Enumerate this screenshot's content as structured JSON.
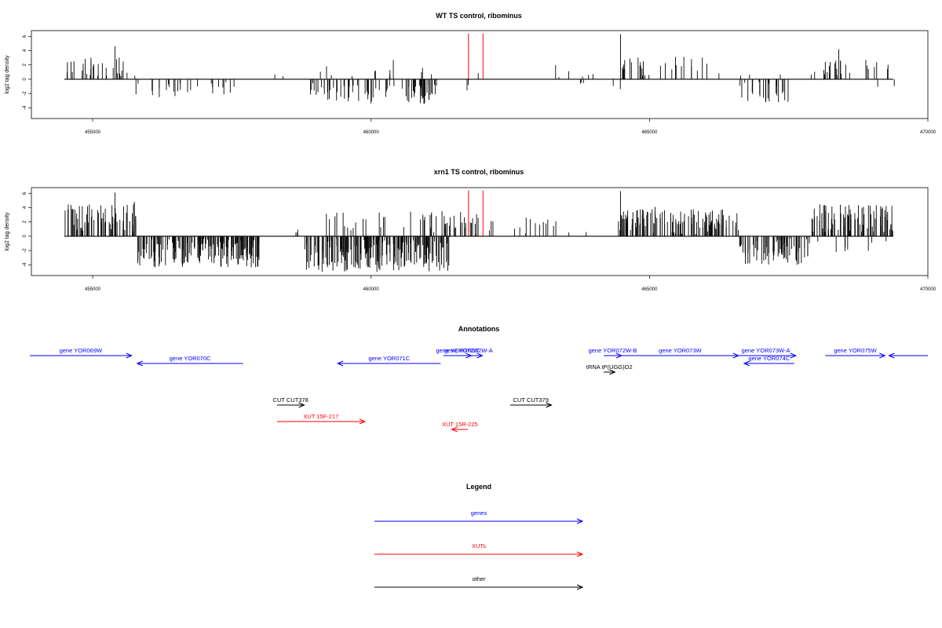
{
  "colors": {
    "genes": "#0000ff",
    "xuts": "#ff0000",
    "other": "#000000",
    "marker": "#ff0000",
    "bars": "#000000"
  },
  "chart_data": [
    {
      "type": "bar",
      "title": "WT TS control, ribominus",
      "ylabel": "log2 tag density",
      "xlim": [
        453900,
        470000
      ],
      "ylim": [
        -5.5,
        6.8
      ],
      "xticks": [
        455000,
        460000,
        465000,
        470000
      ],
      "yticks": [
        -4,
        -2,
        0,
        2,
        4,
        6
      ],
      "marker_lines": [
        461750,
        462010
      ],
      "segments": [
        {
          "from": 454500,
          "to": 455800,
          "sign": 1,
          "count": 30,
          "seed": 11,
          "max": 3.2,
          "extras": [
            [
              455400,
              4.6
            ]
          ]
        },
        {
          "from": 455750,
          "to": 457600,
          "sign": -1,
          "count": 26,
          "seed": 12,
          "max": 2.6
        },
        {
          "from": 458200,
          "to": 458500,
          "sign": 1,
          "count": 2,
          "seed": 13,
          "max": 1.0
        },
        {
          "from": 458800,
          "to": 460000,
          "sign": 1,
          "count": 3,
          "seed": 14,
          "max": 1.6,
          "extras": [
            [
              459200,
              1.8
            ]
          ]
        },
        {
          "from": 458900,
          "to": 461200,
          "sign": -1,
          "count": 75,
          "seed": 15,
          "max": 3.5
        },
        {
          "from": 460000,
          "to": 461400,
          "sign": 1,
          "count": 8,
          "seed": 16,
          "max": 1.6,
          "extras": [
            [
              460400,
              2.7
            ]
          ]
        },
        {
          "from": 461700,
          "to": 461800,
          "sign": -1,
          "count": 2,
          "seed": 17,
          "max": 1.8
        },
        {
          "from": 461900,
          "to": 462000,
          "sign": 1,
          "count": 1,
          "seed": 18,
          "max": 0.9
        },
        {
          "from": 463300,
          "to": 463600,
          "sign": 1,
          "count": 3,
          "seed": 19,
          "max": 2.3
        },
        {
          "from": 463700,
          "to": 464100,
          "sign": 1,
          "count": 3,
          "seed": 20,
          "max": 1.0
        },
        {
          "from": 463700,
          "to": 464000,
          "sign": -1,
          "count": 3,
          "seed": 21,
          "max": 1.0
        },
        {
          "from": 464300,
          "to": 464500,
          "sign": -1,
          "count": 2,
          "seed": 22,
          "max": 2.4
        },
        {
          "from": 464400,
          "to": 466300,
          "sign": 1,
          "count": 30,
          "seed": 23,
          "max": 3.3,
          "extras": [
            [
              464480,
              6.3
            ]
          ]
        },
        {
          "from": 466600,
          "to": 467600,
          "sign": -1,
          "count": 22,
          "seed": 24,
          "max": 3.3
        },
        {
          "from": 466600,
          "to": 467400,
          "sign": 1,
          "count": 3,
          "seed": 25,
          "max": 0.9
        },
        {
          "from": 467200,
          "to": 467500,
          "sign": -1,
          "count": 2,
          "seed": 26,
          "max": 2.8
        },
        {
          "from": 467900,
          "to": 469300,
          "sign": 1,
          "count": 26,
          "seed": 27,
          "max": 3.1,
          "extras": [
            [
              468400,
              4.2
            ]
          ]
        },
        {
          "from": 469000,
          "to": 469400,
          "sign": -1,
          "count": 2,
          "seed": 28,
          "max": 1.2
        }
      ]
    },
    {
      "type": "bar",
      "title": "xrn1 TS control, ribominus",
      "ylabel": "log2 tag density",
      "xlim": [
        453900,
        470000
      ],
      "ylim": [
        -5.5,
        6.8
      ],
      "xticks": [
        455000,
        460000,
        465000,
        470000
      ],
      "yticks": [
        -4,
        -2,
        0,
        2,
        4,
        6
      ],
      "marker_lines": [
        461750,
        462010
      ],
      "segments": [
        {
          "from": 454500,
          "to": 455800,
          "sign": 1,
          "count": 70,
          "seed": 31,
          "max": 4.5,
          "extras": [
            [
              455400,
              6.1
            ],
            [
              455750,
              4.8
            ]
          ]
        },
        {
          "from": 455800,
          "to": 458000,
          "sign": -1,
          "count": 170,
          "seed": 32,
          "max": 4.4
        },
        {
          "from": 458600,
          "to": 458800,
          "sign": 1,
          "count": 3,
          "seed": 33,
          "max": 1.0
        },
        {
          "from": 458800,
          "to": 461400,
          "sign": -1,
          "count": 200,
          "seed": 34,
          "max": 5.0
        },
        {
          "from": 459000,
          "to": 461900,
          "sign": 1,
          "count": 45,
          "seed": 35,
          "max": 3.6
        },
        {
          "from": 461500,
          "to": 462300,
          "sign": 1,
          "count": 12,
          "seed": 36,
          "max": 3.0
        },
        {
          "from": 462500,
          "to": 464300,
          "sign": 1,
          "count": 14,
          "seed": 37,
          "max": 2.6
        },
        {
          "from": 464400,
          "to": 466600,
          "sign": 1,
          "count": 130,
          "seed": 38,
          "max": 3.8,
          "extras": [
            [
              464480,
              6.3
            ],
            [
              465100,
              4.1
            ]
          ]
        },
        {
          "from": 466600,
          "to": 467900,
          "sign": -1,
          "count": 70,
          "seed": 39,
          "max": 4.0
        },
        {
          "from": 467900,
          "to": 469400,
          "sign": 1,
          "count": 80,
          "seed": 40,
          "max": 4.5
        },
        {
          "from": 468000,
          "to": 469400,
          "sign": -1,
          "count": 8,
          "seed": 41,
          "max": 2.2
        }
      ]
    }
  ],
  "annotations": {
    "title": "Annotations",
    "features": [
      {
        "label": "gene YOR069W",
        "type": "genes",
        "start": 453700,
        "end": 455700,
        "dir": "+",
        "row": 0
      },
      {
        "label": "gene YOR070C",
        "type": "genes",
        "start": 455800,
        "end": 457700,
        "dir": "-",
        "row": 1
      },
      {
        "label": "gene YOR071C",
        "type": "genes",
        "start": 459400,
        "end": 461250,
        "dir": "-",
        "row": 1
      },
      {
        "label": "gene YOR072W",
        "type": "genes",
        "start": 461300,
        "end": 461800,
        "dir": "+",
        "row": 0
      },
      {
        "label": "gene YOR072W-A",
        "type": "genes",
        "start": 461500,
        "end": 462000,
        "dir": "+",
        "row": 0
      },
      {
        "label": "gene YOR072W-B",
        "type": "genes",
        "start": 464180,
        "end": 464500,
        "dir": "+",
        "row": 0
      },
      {
        "label": "gene YOR073W",
        "type": "genes",
        "start": 464500,
        "end": 466600,
        "dir": "+",
        "row": 0
      },
      {
        "label": "gene YOR073W-A",
        "type": "genes",
        "start": 466550,
        "end": 467630,
        "dir": "+",
        "row": 0
      },
      {
        "label": "gene YOR074C",
        "type": "genes",
        "start": 466700,
        "end": 467600,
        "dir": "-",
        "row": 1
      },
      {
        "label": "gene YOR075W",
        "type": "genes",
        "start": 468160,
        "end": 469230,
        "dir": "+",
        "row": 0
      },
      {
        "label": "",
        "type": "genes",
        "start": 469300,
        "end": 470000,
        "dir": "-",
        "row": 0
      },
      {
        "label": "tRNA tP(UGG)O2",
        "type": "other",
        "start": 464180,
        "end": 464380,
        "dir": "+",
        "row": 2
      },
      {
        "label": "CUT CUT378",
        "type": "other",
        "start": 458310,
        "end": 458800,
        "dir": "+",
        "row": 3
      },
      {
        "label": "CUT CUT379",
        "type": "other",
        "start": 462500,
        "end": 463240,
        "dir": "+",
        "row": 3
      },
      {
        "label": "XUT 15F-217",
        "type": "xuts",
        "start": 458310,
        "end": 459890,
        "dir": "+",
        "row": 4
      },
      {
        "label": "XUT 15R-225",
        "type": "xuts",
        "start": 461450,
        "end": 461740,
        "dir": "-",
        "row": 5
      }
    ]
  },
  "legend": {
    "title": "Legend",
    "items": [
      {
        "label": "genes",
        "type": "genes"
      },
      {
        "label": "XUTs",
        "type": "xuts"
      },
      {
        "label": "other",
        "type": "other"
      }
    ]
  }
}
